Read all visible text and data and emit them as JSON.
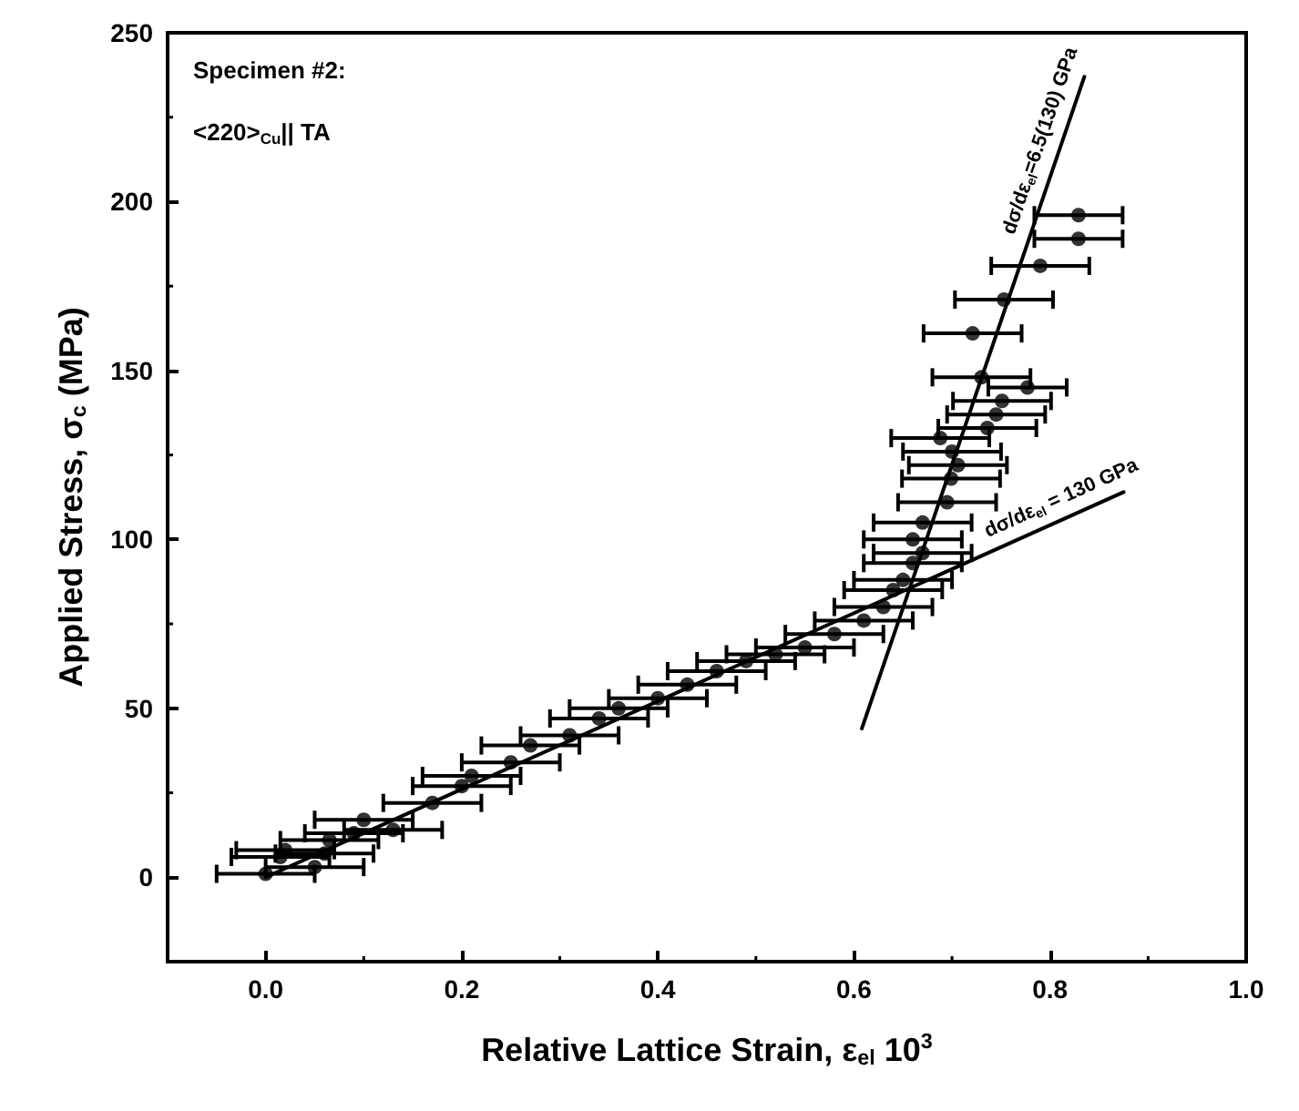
{
  "chart_data": {
    "type": "scatter",
    "xlabel": "Relative Lattice Strain, ε$_{el}$ 10$^{3}$",
    "ylabel": "Applied Stress, σ$_{c}$ (MPa)",
    "xlim": [
      -0.1,
      1.0
    ],
    "xticks": [
      {
        "value": 0,
        "label": "0.0"
      },
      0.2,
      0.4,
      0.6,
      0.8,
      {
        "value": 1,
        "label": "1.0"
      }
    ],
    "ylim": [
      -25,
      250
    ],
    "yticks": [
      0,
      50,
      100,
      150,
      200,
      250
    ],
    "marker": "circle",
    "series": [
      {
        "type": "scatter",
        "color": "#000000",
        "x": [
          0.0,
          0.015,
          0.02,
          0.05,
          0.06,
          0.065,
          0.09,
          0.1,
          0.13,
          0.17,
          0.2,
          0.21,
          0.25,
          0.27,
          0.31,
          0.34,
          0.36,
          0.4,
          0.43,
          0.46,
          0.49,
          0.52,
          0.55,
          0.58,
          0.61,
          0.63,
          0.64,
          0.65,
          0.66,
          0.67,
          0.66,
          0.67,
          0.695,
          0.699,
          0.706,
          0.7,
          0.688,
          0.736,
          0.745,
          0.751,
          0.777,
          0.73,
          0.721,
          0.753,
          0.79,
          0.829,
          0.829
        ],
        "values": [
          1,
          6,
          8,
          3,
          7,
          11,
          13,
          17,
          14,
          22,
          27,
          30,
          34,
          39,
          42,
          47,
          50,
          53,
          57,
          61,
          64,
          66,
          68,
          72,
          76,
          80,
          85,
          88,
          93,
          96,
          100,
          105,
          111,
          118,
          122,
          126,
          130,
          133,
          137,
          141,
          145,
          148,
          161,
          171,
          181,
          189,
          196
        ],
        "xerrors": [
          0.05,
          0.05,
          0.05,
          0.05,
          0.05,
          0.05,
          0.05,
          0.05,
          0.05,
          0.05,
          0.05,
          0.05,
          0.05,
          0.05,
          0.05,
          0.05,
          0.05,
          0.05,
          0.05,
          0.05,
          0.05,
          0.05,
          0.05,
          0.05,
          0.05,
          0.05,
          0.05,
          0.05,
          0.05,
          0.05,
          0.05,
          0.05,
          0.05,
          0.05,
          0.05,
          0.05,
          0.05,
          0.05,
          0.05,
          0.05,
          0.04,
          0.05,
          0.05,
          0.05,
          0.05,
          0.045,
          0.045
        ]
      },
      {
        "type": "line",
        "color": "#000000",
        "marker": "none",
        "line_style": "solid",
        "x": [
          0.0,
          0.875
        ],
        "values": [
          0,
          114
        ]
      },
      {
        "type": "line",
        "color": "#000000",
        "marker": "none",
        "line_style": "solid",
        "x": [
          0.608,
          0.835
        ],
        "values": [
          44,
          237
        ]
      }
    ],
    "annotations": [
      "Specimen #2:",
      "<220>$_{Cu}$|| TA",
      {
        "text": "dσ/dε$_{el}$ = 130 GPa",
        "x": 0.82,
        "y": 106.6
      },
      {
        "text": "dσ/dε$_{el}$=6.5(130) GPa",
        "x": 0.81,
        "y": 216
      }
    ]
  }
}
